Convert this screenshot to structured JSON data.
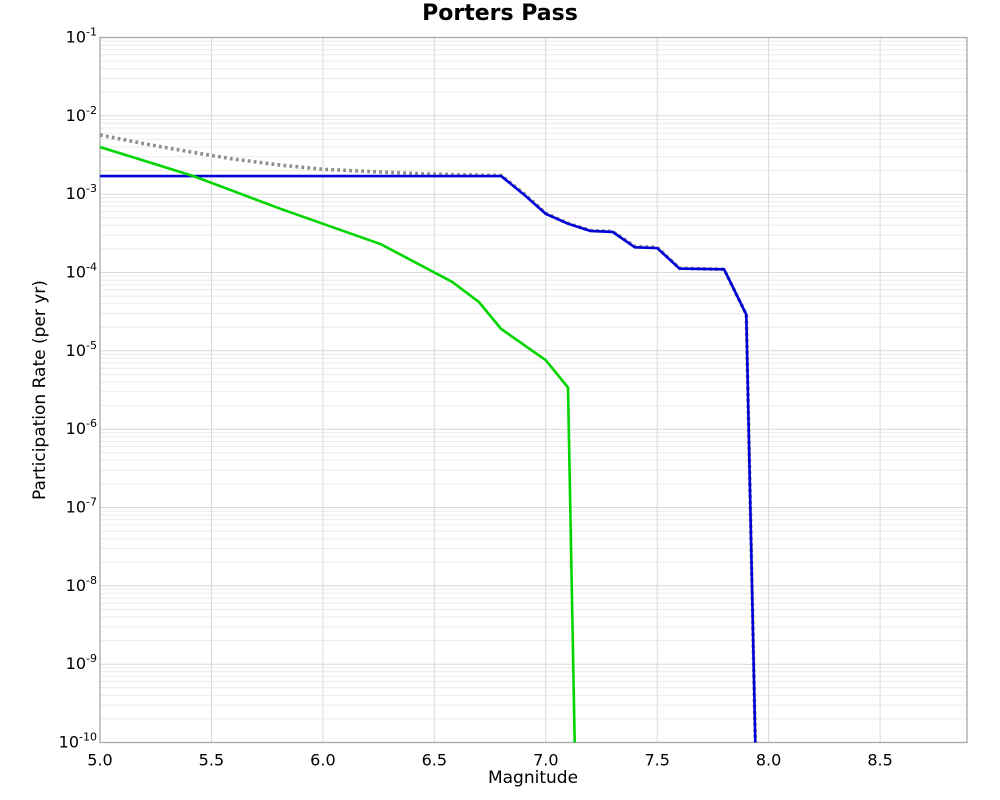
{
  "title": "Porters Pass",
  "colors": {
    "background": "#ffffff",
    "axis_border": "#a8a8a8",
    "grid_major": "#d9d9d9",
    "grid_minor": "#ebebeb",
    "series_gray": "#8f8f8f",
    "series_blue": "#0000d9",
    "series_green": "#00d500",
    "text": "#000000"
  },
  "chart_data": {
    "type": "line",
    "title": "Porters Pass",
    "xlabel": "Magnitude",
    "ylabel": "Participation Rate (per yr)",
    "xlim": [
      5.0,
      8.89
    ],
    "ylim": [
      1e-10,
      0.1
    ],
    "yscale": "log",
    "grid": "horizontal major+log-minor, vertical major; legend: none",
    "legend": "none",
    "x_ticks": [
      5.0,
      5.5,
      6.0,
      6.5,
      7.0,
      7.5,
      8.0,
      8.5
    ],
    "x_tick_labels": [
      "5.0",
      "5.5",
      "6.0",
      "6.5",
      "7.0",
      "7.5",
      "8.0",
      "8.5"
    ],
    "y_tick_exponents": [
      -1,
      -2,
      -3,
      -4,
      -5,
      -6,
      -7,
      -8,
      -9,
      -10
    ],
    "series": [
      {
        "name": "gray-dotted-total",
        "color": "#8f8f8f",
        "style": "dotted",
        "width": 3.6,
        "points": [
          [
            5.0,
            0.0057
          ],
          [
            5.2,
            0.0044
          ],
          [
            5.42,
            0.0034
          ],
          [
            5.6,
            0.0028
          ],
          [
            5.81,
            0.00235
          ],
          [
            6.0,
            0.00208
          ],
          [
            6.26,
            0.00192
          ],
          [
            6.45,
            0.00182
          ],
          [
            6.6,
            0.00177
          ],
          [
            6.8,
            0.00173
          ],
          [
            6.9,
            0.00103
          ],
          [
            7.0,
            0.00057
          ],
          [
            7.1,
            0.000425
          ],
          [
            7.2,
            0.000345
          ],
          [
            7.3,
            0.000335
          ],
          [
            7.4,
            0.000215
          ],
          [
            7.5,
            0.00021
          ],
          [
            7.6,
            0.000113
          ],
          [
            7.8,
            0.00011
          ],
          [
            7.9,
            2.9e-05
          ],
          [
            7.94,
            1e-10
          ]
        ]
      },
      {
        "name": "blue-solid-characteristic",
        "color": "#0000d9",
        "style": "solid",
        "width": 2.6,
        "points": [
          [
            5.0,
            0.0017
          ],
          [
            6.8,
            0.0017
          ],
          [
            6.9,
            0.001
          ],
          [
            7.0,
            0.00056
          ],
          [
            7.1,
            0.00042
          ],
          [
            7.2,
            0.00034
          ],
          [
            7.3,
            0.00033
          ],
          [
            7.4,
            0.00021
          ],
          [
            7.5,
            0.000205
          ],
          [
            7.6,
            0.000112
          ],
          [
            7.8,
            0.00011
          ],
          [
            7.9,
            2.9e-05
          ],
          [
            7.94,
            1e-10
          ]
        ]
      },
      {
        "name": "green-solid-tail",
        "color": "#00d500",
        "style": "solid",
        "width": 2.6,
        "points": [
          [
            5.0,
            0.004
          ],
          [
            5.42,
            0.0017
          ],
          [
            5.81,
            0.00065
          ],
          [
            6.26,
            0.00023
          ],
          [
            6.58,
            7.6e-05
          ],
          [
            6.7,
            4.2e-05
          ],
          [
            6.8,
            1.9e-05
          ],
          [
            7.0,
            7.6e-06
          ],
          [
            7.1,
            3.4e-06
          ],
          [
            7.13,
            1e-10
          ]
        ]
      }
    ]
  }
}
